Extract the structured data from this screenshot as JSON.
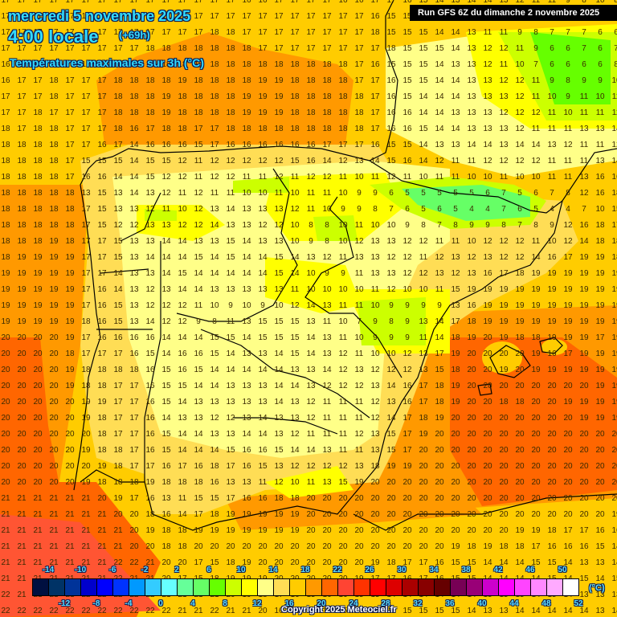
{
  "header": {
    "date": "mercredi 5 novembre 2025",
    "time": "4:00 locale",
    "forecast_step": "(+69h)",
    "variable": "Températures maximales sur 3h (°C)",
    "run_info": "Run GFS 6Z du dimanche 2 novembre 2025"
  },
  "footer": {
    "copyright": "Copyright 2025 Meteociel.fr",
    "unit": "(°C)"
  },
  "legend": {
    "top_labels": [
      "-14",
      "-10",
      "-6",
      "-2",
      "2",
      "6",
      "10",
      "14",
      "18",
      "22",
      "26",
      "30",
      "34",
      "38",
      "42",
      "46",
      "50"
    ],
    "bottom_labels": [
      "-12",
      "-8",
      "-4",
      "0",
      "4",
      "8",
      "12",
      "16",
      "20",
      "24",
      "28",
      "32",
      "36",
      "40",
      "44",
      "48",
      "52"
    ],
    "colors": [
      "#001040",
      "#003366",
      "#003399",
      "#0000cc",
      "#0000ff",
      "#0033ff",
      "#0099ff",
      "#33ccff",
      "#66ffff",
      "#66ff99",
      "#66ff66",
      "#66ff00",
      "#ccff00",
      "#ffff00",
      "#ffff88",
      "#ffdd55",
      "#ffcc00",
      "#ff9900",
      "#ff6600",
      "#ff4433",
      "#ff3300",
      "#ff0000",
      "#dd0000",
      "#aa0000",
      "#880000",
      "#660000",
      "#770055",
      "#990077",
      "#cc00cc",
      "#ff00ff",
      "#ff44ff",
      "#ff88ff",
      "#ffaaff",
      "#ffffff"
    ]
  },
  "map": {
    "region": "Iberian Peninsula",
    "grid_rows": [
      "17 17 17 17 17 17 17 17 17 17 17 17 17 17 17 16 16 17 17 17 17 16 16 17 17 16 15 14 13 14 14 13 12 11 11 9 8 10 8 8",
      "17 17 17 17 17 17 17 17 17 17 17 17 17 17 17 17 17 17 17 17 17 17 17 16 15 15 14 14 13 12 11 11 8 7 8 7 8 7 7 7",
      "17 17 17 17 17 17 17 17 17 17 17 17 17 18 18 17 17 17 17 17 17 17 17 18 15 15 15 14 14 13 11 11 9 8 7 7 7 6 6 6",
      "17 17 17 17 17 17 17 17 17 18 18 18 18 18 18 18 17 17 17 17 17 17 17 17 18 15 15 15 14 13 12 12 11 9 6 6 7 6 7 7",
      "16 17 17 17 17 17 17 18 18 18 18 18 18 18 18 18 18 18 18 18 18 18 17 16 15 15 15 14 13 13 12 11 10 7 6 6 6 6 8 8",
      "16 17 17 18 17 17 17 18 18 18 18 19 18 18 18 18 19 19 18 18 18 18 17 17 16 15 15 14 14 13 13 12 12 11 9 8 9 9 10 10",
      "17 17 17 18 17 17 17 18 18 18 19 18 18 18 18 19 19 19 18 18 18 18 18 17 16 15 14 14 14 13 13 13 12 11 10 9 11 10 11 11",
      "17 17 18 17 17 17 17 18 18 18 19 18 18 18 18 19 19 19 18 18 18 18 18 17 16 16 14 14 13 13 13 12 12 12 11 10 11 11 11 11",
      "18 17 18 18 17 17 17 18 16 17 18 18 17 17 18 18 18 18 18 18 18 18 18 17 16 16 15 14 14 13 13 13 12 11 11 11 13 13 14 14",
      "18 18 18 18 17 17 16 17 14 16 16 16 15 17 16 16 16 16 16 16 17 17 17 16 15 15 14 13 13 14 14 13 14 14 13 12 11 11 12 14",
      "18 18 18 18 17 15 15 15 14 15 15 12 11 12 12 12 12 12 15 16 14 12 13 14 15 16 14 12 11 11 12 12 12 12 11 11 11 13 14 15",
      "18 18 18 18 17 16 16 14 14 15 12 12 11 12 12 11 11 12 11 12 12 11 10 11 12 11 10 11 11 10 10 11 10 10 11 11 13 16 16 16",
      "18 18 18 18 18 13 15 13 14 13 12 11 12 11 11 10 10 11 10 11 11 10 9 9 6 5 5 5 5 5 6 7 5 6 7 8 12 16 18 17",
      "18 18 18 18 18 17 15 13 13 12 11 10 12 13 14 13 13 13 12 11 10 9 9 8 7 6 5 6 5 4 4 7 6 5 4 4 7 10 15 18",
      "18 18 18 18 18 17 15 12 12 13 13 12 12 14 13 13 12 12 10 8 8 10 11 10 10 9 8 7 8 9 9 8 7 8 9 12 16 18 17 18",
      "18 18 18 19 18 17 17 15 13 13 14 14 13 13 15 14 13 13 10 9 8 10 12 13 13 12 12 11 11 10 12 12 12 11 10 12 14 18 18 18",
      "18 19 19 19 19 17 17 15 13 14 14 14 15 14 15 14 14 15 14 13 12 11 13 13 12 12 11 12 13 12 13 12 12 14 16 17 19 19 18 18",
      "19 19 19 19 19 17 17 14 13 13 14 15 14 14 14 14 14 15 14 10 9 9 11 13 13 12 12 13 12 13 16 17 18 19 19 19 19 19 19 19",
      "19 19 19 19 19 17 16 14 13 12 13 14 14 13 13 13 13 13 11 10 10 10 10 11 12 10 10 11 15 19 19 19 19 19 19 19 19 19 19 19",
      "19 19 19 19 19 17 16 15 13 12 12 12 11 10 9 10 9 10 12 14 13 11 11 10 9 9 9 9 13 16 19 19 19 19 19 19 19 19 19 19",
      "19 19 19 19 19 18 16 15 13 14 12 12 9 8 11 13 15 15 15 13 11 10 7 9 8 9 13 14 17 18 19 19 19 19 19 19 19 19 19 19",
      "20 20 20 20 19 17 16 16 16 16 14 14 14 15 15 14 15 15 15 14 13 11 10 9 9 9 11 14 18 19 20 19 18 18 19 19 19 17 19 19",
      "20 20 20 20 18 17 17 17 16 15 14 16 16 15 14 13 13 14 15 14 13 12 11 10 10 12 13 17 19 20 20 20 20 19 16 17 19 19 19 19",
      "20 20 20 20 19 18 18 18 18 16 15 16 15 14 14 14 14 14 13 13 14 12 13 12 12 12 13 15 18 20 20 19 20 19 19 19 19 19 19 19",
      "20 20 20 20 19 18 18 17 17 16 15 15 14 14 13 13 13 14 14 13 12 12 12 13 14 16 17 18 19 20 20 20 20 20 20 20 20 19 19 19",
      "20 20 20 20 20 19 19 17 17 16 15 14 13 13 13 13 13 14 13 12 11 11 11 12 13 16 17 18 19 20 20 18 18 20 20 19 19 19 19 19",
      "20 20 20 20 20 19 18 17 17 16 14 13 13 12 12 13 14 13 13 12 11 11 11 12 14 17 18 19 20 20 20 20 20 20 20 20 19 19 19 19",
      "20 20 20 20 20 20 18 17 17 16 15 14 14 13 13 14 14 13 12 11 11 11 12 13 15 17 19 20 20 20 20 20 20 20 20 20 20 20 20 20",
      "20 20 20 20 20 19 18 18 17 16 15 14 14 14 15 16 16 15 14 14 13 11 11 13 15 17 20 20 20 20 20 20 20 20 20 20 20 20 20 20",
      "20 20 20 20 20 20 19 18 17 17 16 17 16 18 17 16 15 13 12 12 12 12 13 18 19 19 20 20 20 20 20 20 20 20 20 20 20 20 20 20",
      "20 20 20 20 20 19 18 18 18 19 18 18 18 16 13 13 11 12 10 11 13 15 19 20 20 20 20 20 20 20 20 20 20 20 20 20 20 20 20 20",
      "21 21 21 21 21 21 20 19 17 16 13 11 15 15 17 16 16 18 18 20 20 20 20 20 20 20 20 20 20 20 20 20 20 20 20 20 20 20 20 20",
      "21 21 21 21 21 21 21 20 20 18 16 14 17 18 19 19 19 19 19 20 20 20 20 20 20 20 20 20 20 20 20 20 20 20 20 20 20 20 19 19",
      "21 21 21 21 21 21 21 21 20 19 18 18 19 19 19 19 19 19 19 20 20 20 20 20 20 20 20 20 20 20 20 20 19 19 18 17 17 16 16 14",
      "21 21 21 21 21 21 21 21 20 20 18 18 20 20 20 20 20 20 20 20 20 20 20 20 20 20 20 20 19 18 19 18 18 17 16 16 16 15 14 13",
      "21 21 21 21 21 21 21 22 22 21 20 20 17 15 18 19 20 20 20 20 20 20 20 19 18 17 17 16 15 15 14 14 14 15 15 14 13 13 14 13",
      "21 21 21 21 21 21 21 22 21 21 20 17 15 18 19 19 19 20 20 20 20 20 19 17 17 16 17 16 15 15 14 14 14 14 15 14 15 14 15 15",
      "22 21 21 21 21 22 22 22 22 22 21 21 21 21 20 19 18 17 16 15 16 16 15 15 14 14 14 14 14 14 15 15 15 14 15 14 13 13 13 14",
      "22 22 22 22 22 22 22 22 22 22 22 21 21 22 21 21 20 16 15 14 14 15 15 15 15 15 15 15 15 14 13 13 14 14 14 14 14 13 14 14"
    ]
  }
}
